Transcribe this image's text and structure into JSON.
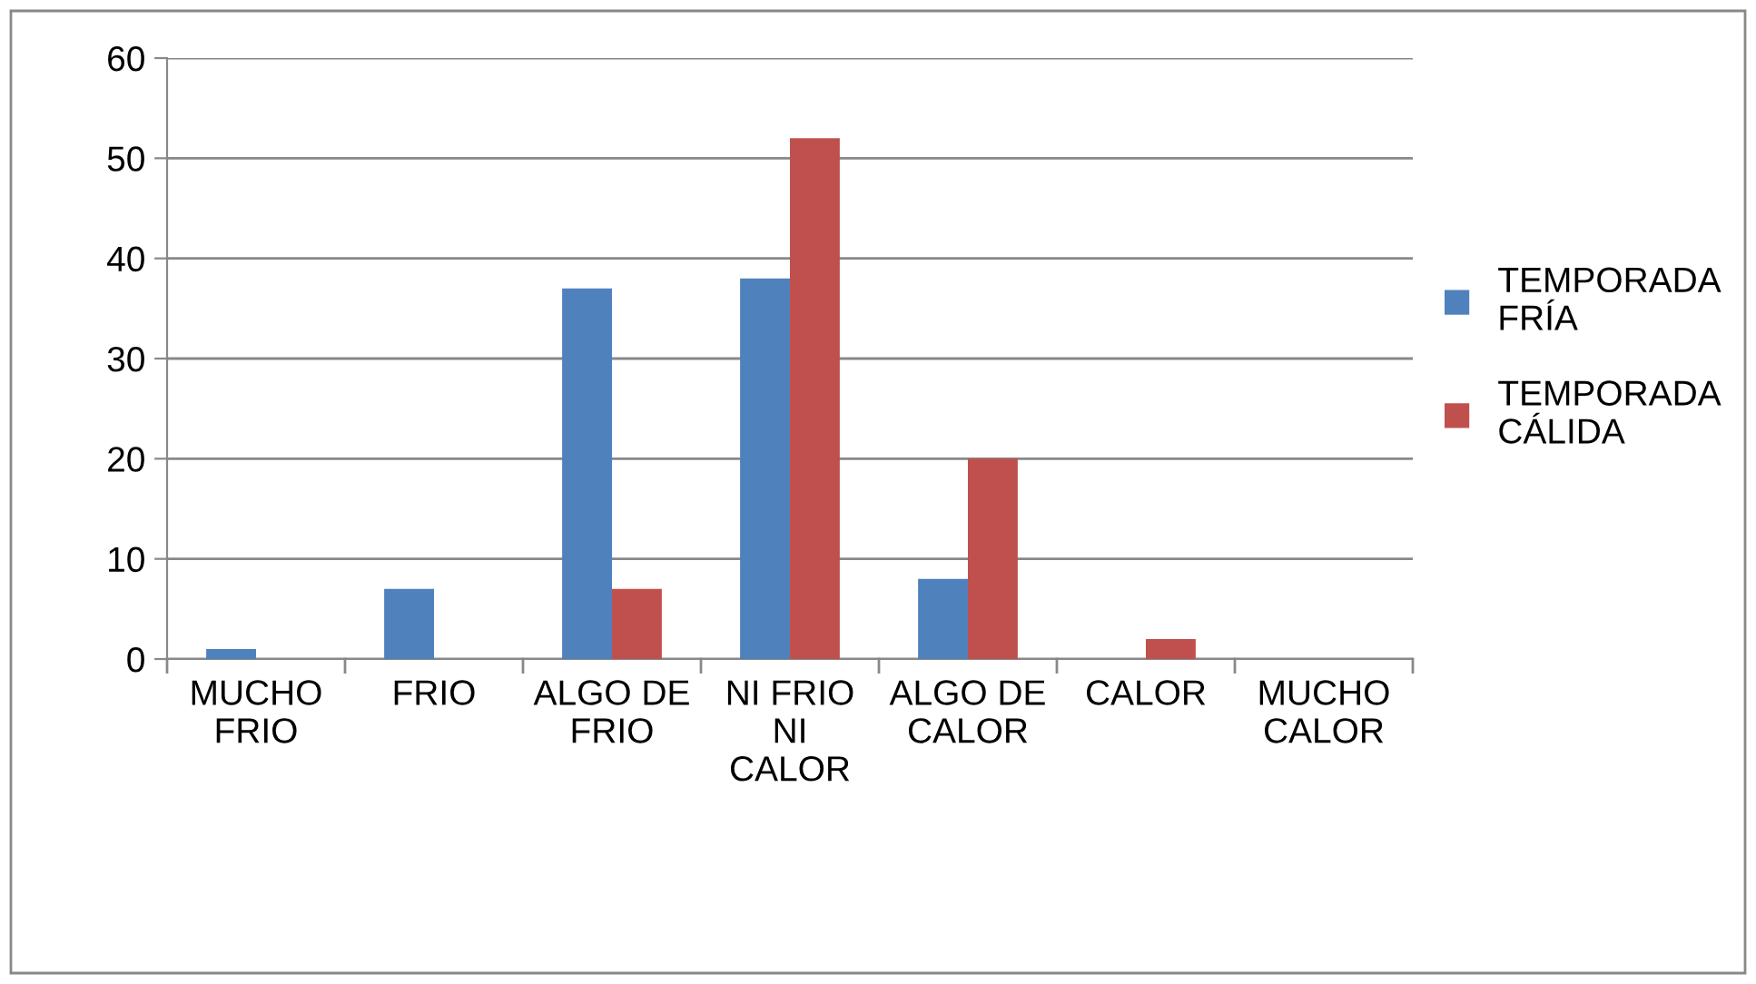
{
  "chart_data": {
    "type": "bar",
    "categories": [
      "MUCHO\nFRIO",
      "FRIO",
      "ALGO DE\nFRIO",
      "NI FRIO\nNI\nCALOR",
      "ALGO DE\nCALOR",
      "CALOR",
      "MUCHO\nCALOR"
    ],
    "series": [
      {
        "name": "TEMPORADA\nFRÍA",
        "color": "#4f81bd",
        "values": [
          1,
          7,
          37,
          38,
          8,
          0,
          0
        ]
      },
      {
        "name": "TEMPORADA\nCÁLIDA",
        "color": "#c0504d",
        "values": [
          0,
          0,
          7,
          52,
          20,
          2,
          0
        ]
      }
    ],
    "ylim": [
      0,
      60
    ],
    "yticks": [
      0,
      10,
      20,
      30,
      40,
      50,
      60
    ],
    "grid": "y",
    "legend": "right"
  }
}
